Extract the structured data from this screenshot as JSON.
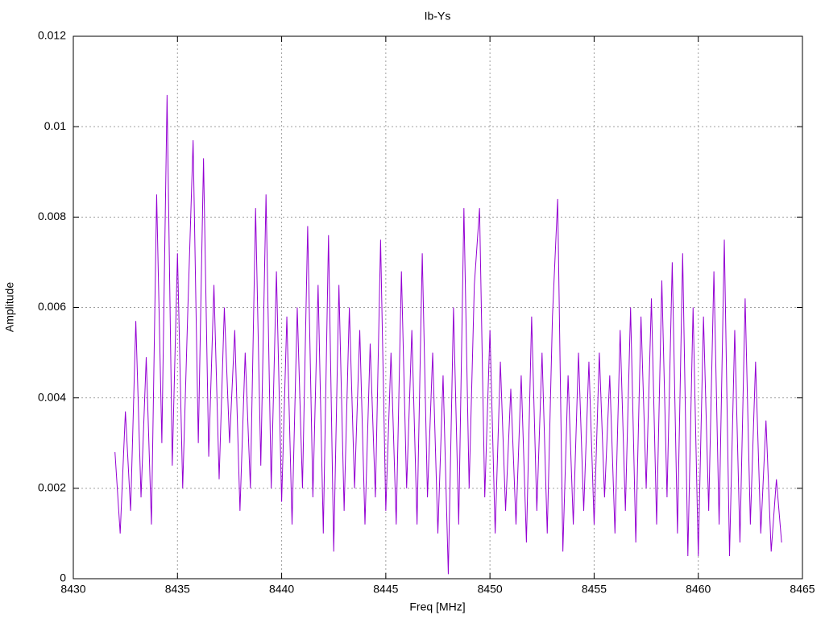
{
  "chart_data": {
    "type": "line",
    "title": "Ib-Ys",
    "x_label": "Freq [MHz]",
    "y_label": "Amplitude",
    "xlim": [
      8430,
      8465
    ],
    "xticks": [
      8430,
      8435,
      8440,
      8445,
      8450,
      8455,
      8460,
      8465
    ],
    "ylim": [
      0,
      0.012
    ],
    "yticks": [
      0,
      0.002,
      0.004,
      0.006,
      0.008,
      0.01,
      0.012
    ],
    "grid": true,
    "x": [
      8432,
      8432.25,
      8432.5,
      8432.75,
      8433,
      8433.25,
      8433.5,
      8433.75,
      8434,
      8434.25,
      8434.5,
      8434.75,
      8435,
      8435.25,
      8435.5,
      8435.75,
      8436,
      8436.25,
      8436.5,
      8436.75,
      8437,
      8437.25,
      8437.5,
      8437.75,
      8438,
      8438.25,
      8438.5,
      8438.75,
      8439,
      8439.25,
      8439.5,
      8439.75,
      8440,
      8440.25,
      8440.5,
      8440.75,
      8441,
      8441.25,
      8441.5,
      8441.75,
      8442,
      8442.25,
      8442.5,
      8442.75,
      8443,
      8443.25,
      8443.5,
      8443.75,
      8444,
      8444.25,
      8444.5,
      8444.75,
      8445,
      8445.25,
      8445.5,
      8445.75,
      8446,
      8446.25,
      8446.5,
      8446.75,
      8447,
      8447.25,
      8447.5,
      8447.75,
      8448,
      8448.25,
      8448.5,
      8448.75,
      8449,
      8449.25,
      8449.5,
      8449.75,
      8450,
      8450.25,
      8450.5,
      8450.75,
      8451,
      8451.25,
      8451.5,
      8451.75,
      8452,
      8452.25,
      8452.5,
      8452.75,
      8453,
      8453.25,
      8453.5,
      8453.75,
      8454,
      8454.25,
      8454.5,
      8454.75,
      8455,
      8455.25,
      8455.5,
      8455.75,
      8456,
      8456.25,
      8456.5,
      8456.75,
      8457,
      8457.25,
      8457.5,
      8457.75,
      8458,
      8458.25,
      8458.5,
      8458.75,
      8459,
      8459.25,
      8459.5,
      8459.75,
      8460,
      8460.25,
      8460.5,
      8460.75,
      8461,
      8461.25,
      8461.5,
      8461.75,
      8462,
      8462.25,
      8462.5,
      8462.75,
      8463,
      8463.25,
      8463.5,
      8463.75,
      8464
    ],
    "series": [
      {
        "color": "#9400d3",
        "values": [
          0.0028,
          0.001,
          0.0037,
          0.0015,
          0.0057,
          0.0018,
          0.0049,
          0.0012,
          0.0085,
          0.003,
          0.0107,
          0.0025,
          0.0072,
          0.002,
          0.006,
          0.0097,
          0.003,
          0.0093,
          0.0027,
          0.0065,
          0.0022,
          0.006,
          0.003,
          0.0055,
          0.0015,
          0.005,
          0.002,
          0.0082,
          0.0025,
          0.0085,
          0.002,
          0.0068,
          0.0017,
          0.0058,
          0.0012,
          0.006,
          0.002,
          0.0078,
          0.0018,
          0.0065,
          0.001,
          0.0076,
          0.0006,
          0.0065,
          0.0015,
          0.006,
          0.002,
          0.0055,
          0.0012,
          0.0052,
          0.0018,
          0.0075,
          0.0015,
          0.005,
          0.0012,
          0.0068,
          0.002,
          0.0055,
          0.0012,
          0.0072,
          0.0018,
          0.005,
          0.001,
          0.0045,
          0.0001,
          0.006,
          0.0012,
          0.0082,
          0.002,
          0.0065,
          0.0082,
          0.0018,
          0.0055,
          0.001,
          0.0048,
          0.0015,
          0.0042,
          0.0012,
          0.0045,
          0.0008,
          0.0058,
          0.0015,
          0.005,
          0.001,
          0.0058,
          0.0084,
          0.0006,
          0.0045,
          0.0012,
          0.005,
          0.0015,
          0.0048,
          0.0012,
          0.005,
          0.0018,
          0.0045,
          0.001,
          0.0055,
          0.0015,
          0.006,
          0.0008,
          0.0058,
          0.002,
          0.0062,
          0.0012,
          0.0066,
          0.0018,
          0.007,
          0.001,
          0.0072,
          0.0005,
          0.006,
          0.0005,
          0.0058,
          0.0015,
          0.0068,
          0.0012,
          0.0075,
          0.0005,
          0.0055,
          0.0008,
          0.0062,
          0.0012,
          0.0048,
          0.001,
          0.0035,
          0.0006,
          0.0022,
          0.0008
        ]
      }
    ]
  }
}
